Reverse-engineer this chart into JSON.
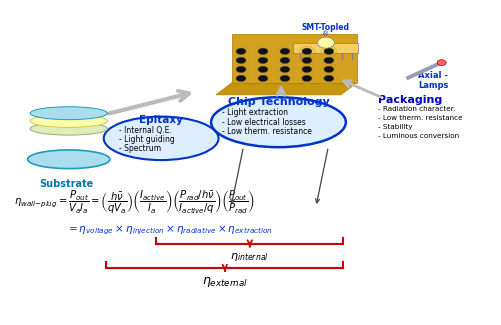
{
  "title": "",
  "bg_color": "#ffffff",
  "smt_topled_line1": "SMT-Topled",
  "smt_topled_line2": "®",
  "axial_lamps_label": "Axial -\nLamps",
  "packaging_title": "Packaging",
  "packaging_bullets": [
    "- Radiation character.",
    "- Low therm. resistance",
    "- Stability",
    "- Luminous conversion"
  ],
  "chip_tech_title": "Chip Technology",
  "chip_tech_bullets": [
    "- Light extraction",
    "- Low electrical losses",
    "- Low therm. resistance"
  ],
  "epitaxy_title": "Epitaxy",
  "epitaxy_bullets": [
    "- Internal Q.E.",
    "- Light guiding",
    "- Spectrum"
  ],
  "substrate_label": "Substrate",
  "blue_color": "#0033cc",
  "dark_blue_color": "#0000aa",
  "red_color": "#cc0000",
  "text_color": "#000000",
  "packaging_color": "#0000cc",
  "chip_tech_color": "#003399"
}
